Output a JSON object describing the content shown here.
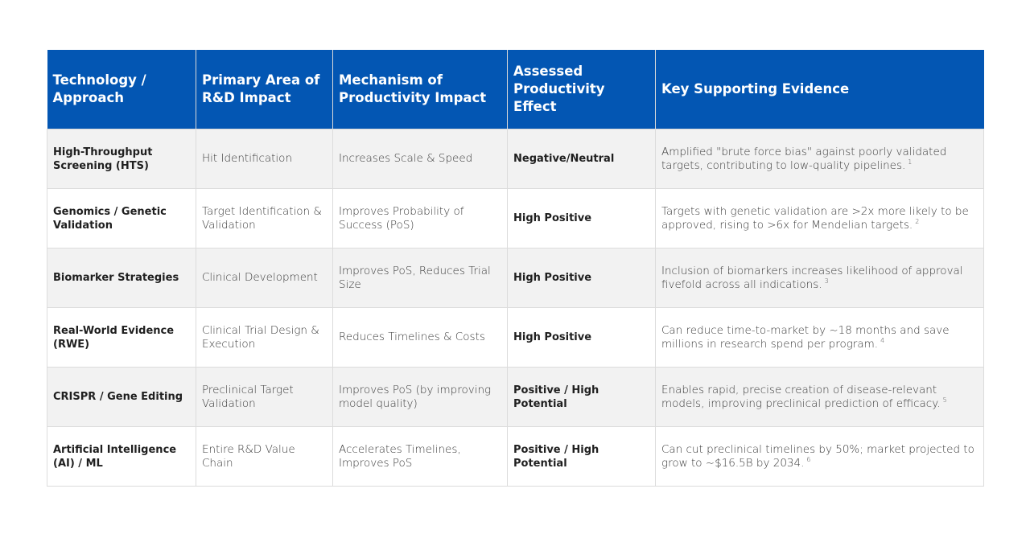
{
  "table": {
    "headers": [
      "Technology / Approach",
      "Primary Area of R&D Impact",
      "Mechanism of Productivity Impact",
      "Assessed Productivity Effect",
      "Key Supporting Evidence"
    ],
    "rows": [
      {
        "technology": "High-Throughput Screening (HTS)",
        "area": "Hit Identification",
        "mechanism": "Increases Scale & Speed",
        "effect": "Negative/Neutral",
        "evidence": "Amplified \"brute force bias\" against poorly validated targets, contributing to low-quality pipelines.",
        "ref": "1"
      },
      {
        "technology": "Genomics / Genetic Validation",
        "area": "Target Identification & Validation",
        "mechanism": "Improves Probability of Success (PoS)",
        "effect": "High Positive",
        "evidence": "Targets with genetic validation are >2x more likely to be approved, rising to >6x for Mendelian targets.",
        "ref": "2"
      },
      {
        "technology": "Biomarker Strategies",
        "area": "Clinical Development",
        "mechanism": "Improves PoS, Reduces Trial Size",
        "effect": "High Positive",
        "evidence": "Inclusion of biomarkers increases likelihood of approval fivefold across all indications.",
        "ref": "3"
      },
      {
        "technology": "Real-World Evidence (RWE)",
        "area": "Clinical Trial Design & Execution",
        "mechanism": "Reduces Timelines & Costs",
        "effect": "High Positive",
        "evidence": "Can reduce time-to-market by ~18 months and save millions in research spend per program.",
        "ref": "4"
      },
      {
        "technology": "CRISPR / Gene Editing",
        "area": "Preclinical Target Validation",
        "mechanism": "Improves PoS (by improving model quality)",
        "effect": "Positive / High Potential",
        "evidence": "Enables rapid, precise creation of disease-relevant models, improving preclinical prediction of efficacy.",
        "ref": "5"
      },
      {
        "technology": "Artificial Intelligence (AI) / ML",
        "area": "Entire R&D Value Chain",
        "mechanism": "Accelerates Timelines, Improves PoS",
        "effect": "Positive / High Potential",
        "evidence": "Can cut preclinical timelines by 50%; market projected to grow to ~$16.5B by 2034.",
        "ref": "6"
      }
    ]
  },
  "colors": {
    "header_bg": "#0356b3",
    "header_text": "#ffffff",
    "row_alt_bg": "#f2f2f2",
    "border": "#dcdcdc"
  }
}
